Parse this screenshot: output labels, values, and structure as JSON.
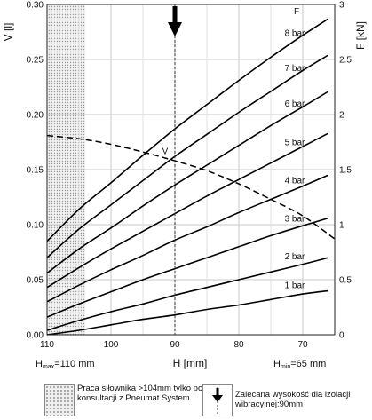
{
  "chart_data": {
    "type": "line",
    "xlabel": "H [mm]",
    "ylabel_left": "V [l]",
    "ylabel_right": "F [kN]",
    "x_ticks": [
      "110",
      "100",
      "90",
      "80",
      "70"
    ],
    "y_left_ticks": [
      "0.00",
      "0.05",
      "0.10",
      "0.15",
      "0.20",
      "0.25",
      "0.30"
    ],
    "y_right_ticks": [
      "0",
      "0.5",
      "1",
      "1.5",
      "2",
      "2.5",
      "3"
    ],
    "xlim": [
      110,
      65
    ],
    "ylim_left": [
      0,
      0.3
    ],
    "ylim_right": [
      0,
      3
    ],
    "h_max_label": {
      "prefix": "H",
      "sub": "max",
      "rest": "=110 mm"
    },
    "h_min_label": {
      "prefix": "H",
      "sub": "min",
      "rest": "=65 mm"
    },
    "f_label": "F",
    "series": [
      {
        "name": "8 bar",
        "axis": "right",
        "x": [
          110,
          105,
          100,
          95,
          90,
          85,
          80,
          75,
          70,
          66
        ],
        "y": [
          0.85,
          1.14,
          1.38,
          1.63,
          1.87,
          2.09,
          2.31,
          2.52,
          2.72,
          2.87
        ]
      },
      {
        "name": "7 bar",
        "axis": "right",
        "x": [
          110,
          105,
          100,
          95,
          90,
          85,
          80,
          75,
          70,
          66
        ],
        "y": [
          0.7,
          0.96,
          1.18,
          1.4,
          1.62,
          1.82,
          2.02,
          2.21,
          2.4,
          2.54
        ]
      },
      {
        "name": "6 bar",
        "axis": "right",
        "x": [
          110,
          105,
          100,
          95,
          90,
          85,
          80,
          75,
          70,
          66
        ],
        "y": [
          0.56,
          0.78,
          0.97,
          1.17,
          1.36,
          1.54,
          1.72,
          1.9,
          2.07,
          2.21
        ]
      },
      {
        "name": "5 bar",
        "axis": "right",
        "x": [
          110,
          105,
          100,
          95,
          90,
          85,
          80,
          75,
          70,
          66
        ],
        "y": [
          0.43,
          0.61,
          0.78,
          0.94,
          1.1,
          1.26,
          1.41,
          1.56,
          1.71,
          1.83
        ]
      },
      {
        "name": "4 bar",
        "axis": "right",
        "x": [
          110,
          105,
          100,
          95,
          90,
          85,
          80,
          75,
          70,
          66
        ],
        "y": [
          0.3,
          0.45,
          0.59,
          0.72,
          0.86,
          0.98,
          1.11,
          1.23,
          1.35,
          1.45
        ]
      },
      {
        "name": "3 bar",
        "axis": "right",
        "x": [
          110,
          105,
          100,
          95,
          90,
          85,
          80,
          75,
          70,
          66
        ],
        "y": [
          0.16,
          0.28,
          0.39,
          0.5,
          0.6,
          0.7,
          0.8,
          0.9,
          0.99,
          1.06
        ]
      },
      {
        "name": "2 bar",
        "axis": "right",
        "x": [
          110,
          105,
          100,
          95,
          90,
          85,
          80,
          75,
          70,
          66
        ],
        "y": [
          0.04,
          0.13,
          0.21,
          0.28,
          0.36,
          0.43,
          0.5,
          0.57,
          0.64,
          0.7
        ]
      },
      {
        "name": "1 bar",
        "axis": "right",
        "x": [
          110,
          105,
          100,
          95,
          90,
          85,
          80,
          75,
          70,
          66
        ],
        "y": [
          0.0,
          0.04,
          0.09,
          0.14,
          0.18,
          0.23,
          0.27,
          0.32,
          0.37,
          0.4
        ]
      },
      {
        "name": "V",
        "axis": "left",
        "dashed": true,
        "x": [
          110,
          105,
          100,
          95,
          90,
          85,
          80,
          75,
          70,
          65
        ],
        "y": [
          0.181,
          0.178,
          0.173,
          0.166,
          0.158,
          0.149,
          0.137,
          0.123,
          0.108,
          0.087
        ]
      }
    ],
    "restricted_zone": {
      "x_from": 110,
      "x_to": 104
    },
    "recommended_height": 90,
    "grid": true
  },
  "legend": {
    "hatch_text": "Praca siłownika >104mm tylko po konsultacji z Pneumat System",
    "arrow_text": "Zalecana wysokość dla izolacji wibracyjnej:90mm"
  }
}
